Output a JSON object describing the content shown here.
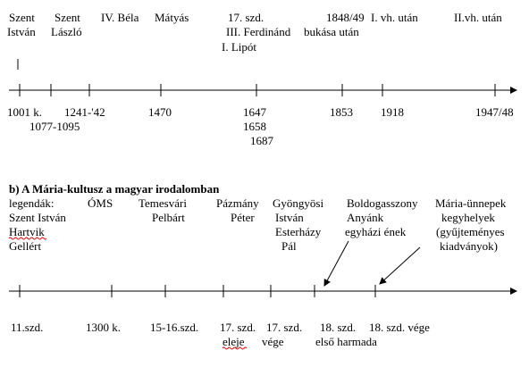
{
  "timeline_1": {
    "above": [
      [
        "Szent",
        "István"
      ],
      [
        "Szent",
        "László"
      ],
      [
        "IV. Béla"
      ],
      [
        "Mátyás"
      ],
      [
        "17. szd.",
        "III. Ferdinánd",
        "I. Lipót"
      ],
      [
        "1848/49",
        "bukása után"
      ],
      [
        "I. vh. után"
      ],
      [
        "II.vh. után"
      ]
    ],
    "below": [
      [
        "1001 k.",
        "1077-1095"
      ],
      [
        "1241-'42"
      ],
      [
        "1470"
      ],
      [
        "1647",
        "1658",
        "1687"
      ],
      [
        "1853"
      ],
      [
        "1918"
      ],
      [
        "1947/48"
      ]
    ]
  },
  "timeline_2": {
    "title": "b) A Mária-kultusz a magyar irodalomban",
    "above": [
      [
        "legendák:",
        "Szent István",
        "Hartvik",
        "Gellért"
      ],
      [
        "ÓMS"
      ],
      [
        "Temesvári",
        "Pelbárt"
      ],
      [
        "Pázmány",
        "Péter"
      ],
      [
        "Gyöngyösi",
        "István",
        "Esterházy",
        "Pál"
      ],
      [
        "Boldogasszony",
        "Anyánk",
        "egyházi ének"
      ],
      [
        "Mária-ünnepek",
        "kegyhelyek",
        "(gyűjteményes",
        "kiadványok)"
      ]
    ],
    "below": [
      [
        "11.szd."
      ],
      [
        "1300 k."
      ],
      [
        "15-16.szd."
      ],
      [
        "17. szd.",
        "eleje"
      ],
      [
        "17. szd.",
        "vége"
      ],
      [
        "18. szd.",
        "első harmada"
      ],
      [
        "18. szd. vége"
      ]
    ]
  }
}
